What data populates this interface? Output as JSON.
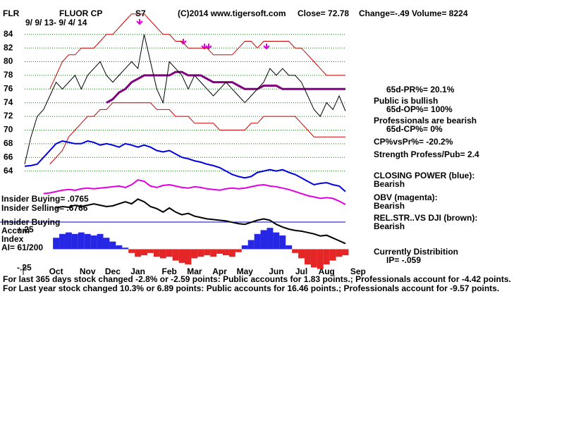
{
  "chart_data": {
    "type": "line",
    "ticker": "FLR",
    "title": "FLUOR CP",
    "signal": "S7",
    "source": "(C)2014 www.tigersoft.com",
    "close": "Close=  72.78",
    "change": "Change=-.49",
    "volume": "Volume= 8224",
    "date_range": "9/ 9/ 13- 9/ 4/ 14",
    "left_labels": [
      "Insider Buying= .0765",
      "Insider Selling= .6766",
      "Insider Buying",
      "Accum",
      "Index",
      "AI= 61/200"
    ],
    "notes": [
      "65d-PR%= 20.1%",
      "Public is bullish",
      "65d-OP%= 100%",
      "Professionals are bearish",
      "65d-CP%= 0%",
      "CP%vsPr%= -20.2%",
      "Strength Profess/Pub= 2.4",
      "CLOSING POWER (blue):",
      "Bearish",
      "OBV (magenta):",
      "Bearish",
      "REL.STR..VS DJI (brown):",
      "Bearish",
      "Currently Distribition",
      "IP= -.059"
    ],
    "footer": [
      "For last 365 days stock changed -2.8% or -2.59 points:  Public accounts for  1.83 points.;  Professionals account for -4.42 points.",
      "For Last year stock changed  10.3% or  6.89 points:  Public accounts for  16.46 points.;  Professionals account for -9.57 points."
    ],
    "categories": [
      null,
      null,
      null,
      null,
      null,
      "Oct",
      null,
      null,
      null,
      null,
      "Nov",
      null,
      null,
      null,
      "Dec",
      null,
      null,
      null,
      "Jan",
      null,
      null,
      null,
      null,
      "Feb",
      null,
      null,
      null,
      "Mar",
      null,
      null,
      null,
      "Apr",
      null,
      null,
      null,
      "May",
      null,
      null,
      null,
      null,
      "Jun",
      null,
      null,
      null,
      "Jul",
      null,
      null,
      null,
      "Aug",
      null,
      null,
      null,
      null,
      "Sep"
    ],
    "ylim": [
      49,
      88
    ],
    "yticks": [
      64,
      66,
      68,
      70,
      72,
      74,
      76,
      78,
      80,
      82,
      84
    ],
    "grid": true,
    "grid_color": "#008000",
    "series": [
      {
        "color": "#d00000",
        "values": [
          null,
          null,
          null,
          null,
          76,
          78,
          80,
          81,
          81,
          82,
          82,
          82,
          83,
          84,
          84,
          85,
          86,
          87,
          87,
          87,
          86,
          85,
          84,
          84,
          83,
          83,
          82,
          82,
          82,
          82,
          81,
          81,
          81,
          81,
          82,
          83,
          83,
          82,
          83,
          83,
          83,
          83,
          83,
          82,
          82,
          81,
          80,
          79,
          78,
          78,
          78,
          78,
          null,
          null
        ]
      },
      {
        "color": "#d00000",
        "values": [
          null,
          null,
          null,
          null,
          65,
          66,
          67,
          69,
          70,
          71,
          72,
          72,
          73,
          73,
          74,
          74,
          74,
          74,
          74,
          74,
          74,
          73,
          73,
          73,
          72,
          72,
          72,
          71,
          71,
          71,
          71,
          70,
          70,
          70,
          70,
          70,
          71,
          71,
          72,
          72,
          72,
          72,
          72,
          72,
          71,
          70,
          69,
          69,
          69,
          69,
          69,
          69,
          null,
          null
        ]
      },
      {
        "color": "#800080",
        "width": 3,
        "values": [
          null,
          null,
          null,
          null,
          null,
          null,
          null,
          null,
          null,
          null,
          null,
          null,
          null,
          74,
          74.5,
          75.5,
          76,
          77,
          77.5,
          78,
          78,
          78,
          78,
          78,
          78.5,
          78.5,
          78,
          78,
          78,
          77.5,
          77,
          77,
          77,
          77,
          76.5,
          76,
          76,
          76,
          76.5,
          76.5,
          76.5,
          76,
          76,
          76,
          76,
          76,
          76,
          76,
          76,
          76,
          76,
          76,
          null,
          null
        ]
      },
      {
        "color": "#000000",
        "values": [
          65,
          69,
          72,
          73,
          75,
          77,
          76,
          77,
          78,
          76,
          78,
          79,
          80,
          78,
          77,
          78,
          79,
          80,
          79,
          84,
          80,
          76,
          74,
          80,
          79,
          78,
          76,
          78,
          77,
          76,
          75,
          76,
          77,
          76,
          75,
          74,
          75,
          76,
          77,
          79,
          78,
          79,
          78,
          78,
          77,
          75,
          73,
          72,
          74,
          73,
          75,
          72.78,
          null,
          null
        ]
      },
      {
        "color": "#0000e0",
        "width": 2,
        "values": [
          64.7,
          64.8,
          65,
          66,
          67,
          68,
          68.4,
          68.2,
          68,
          68,
          68.4,
          68.2,
          67.8,
          68,
          67.8,
          67.5,
          68,
          67.8,
          67.5,
          67.8,
          67.5,
          67,
          66.8,
          67,
          66.5,
          66,
          65.8,
          65.5,
          65.3,
          65,
          64.8,
          64.5,
          64,
          63.5,
          63.2,
          63,
          63.2,
          63.8,
          64,
          64.2,
          64,
          64.2,
          63.8,
          63.5,
          63,
          62.5,
          62,
          62.2,
          62.3,
          62,
          61.8,
          61,
          null,
          null
        ]
      },
      {
        "color": "#e000e0",
        "width": 2,
        "values": [
          null,
          null,
          null,
          60.7,
          60.8,
          61,
          61.2,
          61.3,
          61.2,
          61.4,
          61.5,
          61.4,
          61.5,
          61.6,
          61.7,
          61.8,
          61.6,
          62,
          62.7,
          62.5,
          61.8,
          61.6,
          61.9,
          62,
          61.8,
          61.6,
          61.5,
          61.7,
          61.6,
          61.4,
          61.3,
          61.2,
          61.4,
          61.5,
          61.4,
          61.5,
          61.7,
          61.9,
          62,
          61.8,
          61.7,
          61.5,
          61.3,
          61,
          60.7,
          60.4,
          60.2,
          60,
          60.1,
          60,
          59.6,
          59.1,
          null,
          null
        ]
      },
      {
        "color": "#000000",
        "width": 2,
        "values": [
          null,
          null,
          null,
          null,
          null,
          58.6,
          58.8,
          58.7,
          59,
          58.8,
          59,
          59.2,
          59,
          58.8,
          58.9,
          59.2,
          59.5,
          59.2,
          59.9,
          59.5,
          58.8,
          58.5,
          58,
          58.6,
          58,
          57.6,
          57.8,
          57.4,
          57.2,
          57,
          56.9,
          56.8,
          56.7,
          56.5,
          56.3,
          56.2,
          56.5,
          56.8,
          57,
          56.8,
          56.2,
          55.8,
          55.5,
          55.3,
          55.2,
          55,
          54.8,
          54.5,
          54.6,
          54.2,
          53.8,
          53.4,
          null,
          null
        ]
      }
    ],
    "accum": {
      "positive_color": "#0000e0",
      "negative_color": "#e00000",
      "y2lim": [
        -0.32,
        3.18
      ],
      "y2ticks": [
        {
          "value": 0.25,
          "label": "+.25"
        },
        {
          "value": -0.25,
          "label": "-.25"
        }
      ],
      "values": [
        null,
        null,
        null,
        null,
        null,
        0.15,
        0.2,
        0.22,
        0.2,
        0.22,
        0.2,
        0.18,
        0.2,
        0.15,
        0.1,
        0.05,
        0.02,
        -0.05,
        -0.1,
        -0.08,
        -0.05,
        -0.1,
        -0.12,
        -0.1,
        -0.15,
        -0.18,
        -0.2,
        -0.12,
        -0.1,
        -0.08,
        -0.1,
        -0.06,
        -0.08,
        -0.1,
        -0.04,
        0.05,
        0.12,
        0.2,
        0.25,
        0.28,
        0.22,
        0.18,
        0.05,
        -0.05,
        -0.12,
        -0.2,
        -0.24,
        -0.26,
        -0.2,
        -0.15,
        -0.1,
        -0.08,
        null,
        null
      ]
    }
  }
}
